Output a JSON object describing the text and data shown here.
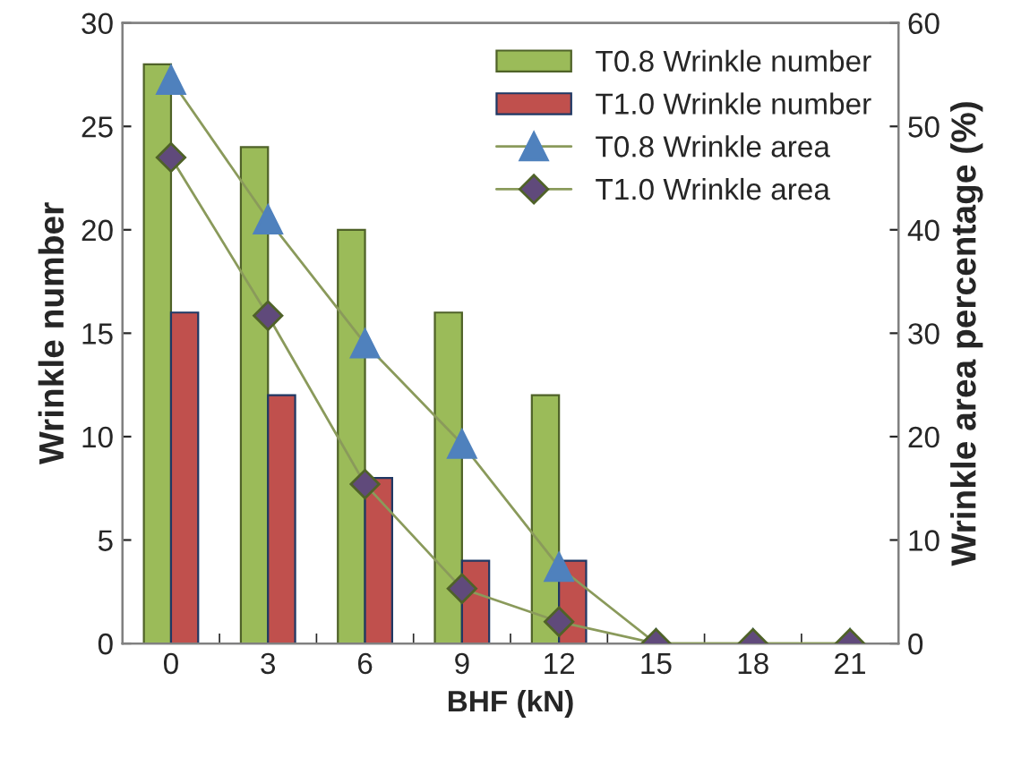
{
  "chart_data": {
    "type": "bar",
    "xlabel": "BHF (kN)",
    "ylabel": "Wrinkle number",
    "y2label": "Wrinkle area percentage (%)",
    "categories": [
      "0",
      "3",
      "6",
      "9",
      "12",
      "15",
      "18",
      "21"
    ],
    "series": [
      {
        "name": "T0.8 Wrinkle number",
        "color": "#9bbb59",
        "values": [
          28,
          24,
          20,
          16,
          12,
          0,
          0,
          0
        ]
      },
      {
        "name": "T1.0 Wrinkle number",
        "color": "#c0504d",
        "values": [
          16,
          12,
          8,
          4,
          4,
          0,
          0,
          0
        ]
      },
      {
        "name": "T0.8 Wrinkle area",
        "type": "line",
        "axis": "y2",
        "color": "#4f81bd",
        "marker": "triangle",
        "values": [
          54.5,
          41,
          29,
          19.3,
          7.4,
          0,
          0,
          0
        ]
      },
      {
        "name": "T1.0 Wrinkle area",
        "type": "line",
        "axis": "y2",
        "color": "#604a7b",
        "marker": "diamond",
        "values": [
          47,
          31.7,
          15.4,
          5.3,
          2.1,
          0,
          0,
          0
        ]
      }
    ],
    "ylim": [
      0,
      30
    ],
    "yticks": [
      0,
      5,
      10,
      15,
      20,
      25,
      30
    ],
    "y2lim": [
      0,
      60
    ],
    "y2ticks": [
      0,
      10,
      20,
      30,
      40,
      50,
      60
    ],
    "grid": false,
    "legend": "top right"
  }
}
